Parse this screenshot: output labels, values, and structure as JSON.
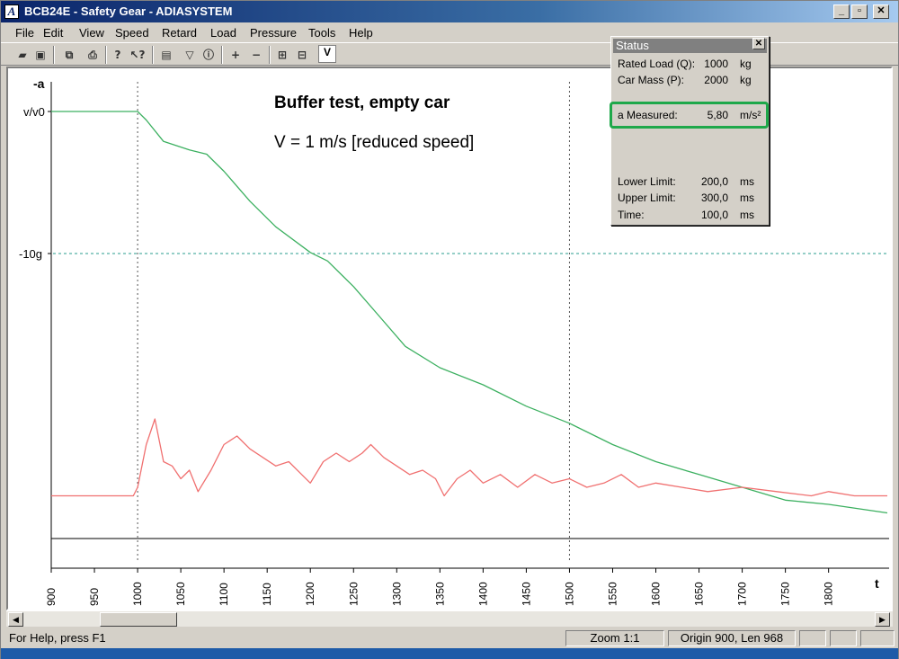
{
  "window": {
    "app_icon_letter": "A",
    "title": "BCB24E - Safety Gear - ADIASYSTEM"
  },
  "window_controls": {
    "minimize": "_",
    "restore": "▫",
    "close": "✕"
  },
  "menu": [
    "File",
    "Edit",
    "View",
    "Speed",
    "Retard",
    "Load",
    "Pressure",
    "Tools",
    "Help"
  ],
  "toolbar": {
    "v_button": "V"
  },
  "plot": {
    "title": "Buffer test, empty car",
    "subtitle": "V = 1 m/s [reduced speed]",
    "y_axis_label": "-a",
    "y_top_label": "v/v0",
    "y_ref_label": "-10g",
    "x_axis_label": "t",
    "x_ticks": [
      "900",
      "950",
      "1000",
      "1050",
      "1100",
      "1150",
      "1200",
      "1250",
      "1300",
      "1350",
      "1400",
      "1450",
      "1500",
      "1550",
      "1600",
      "1650",
      "1700",
      "1750",
      "1800"
    ]
  },
  "chart_data": {
    "type": "line",
    "xlim": [
      900,
      1868
    ],
    "grid": "vertical dotted markers at 1000 and 1500; horizontal dotted reference at -10g",
    "series": [
      {
        "color": "#3cb060",
        "x": [
          900,
          1000,
          1010,
          1030,
          1060,
          1080,
          1100,
          1130,
          1160,
          1200,
          1220,
          1250,
          1280,
          1310,
          1350,
          1400,
          1450,
          1500,
          1550,
          1600,
          1650,
          1700,
          1750,
          1800,
          1868
        ],
        "y": [
          1.0,
          1.0,
          0.98,
          0.93,
          0.91,
          0.9,
          0.86,
          0.79,
          0.73,
          0.67,
          0.65,
          0.59,
          0.52,
          0.45,
          0.4,
          0.36,
          0.31,
          0.27,
          0.22,
          0.18,
          0.15,
          0.12,
          0.09,
          0.08,
          0.06
        ]
      },
      {
        "color": "#f07070",
        "x": [
          900,
          995,
          1000,
          1010,
          1020,
          1030,
          1040,
          1050,
          1060,
          1070,
          1085,
          1100,
          1115,
          1130,
          1145,
          1160,
          1175,
          1190,
          1200,
          1215,
          1230,
          1245,
          1260,
          1270,
          1285,
          1300,
          1315,
          1330,
          1345,
          1355,
          1370,
          1385,
          1400,
          1420,
          1440,
          1460,
          1480,
          1500,
          1520,
          1540,
          1560,
          1580,
          1600,
          1630,
          1660,
          1700,
          1740,
          1780,
          1800,
          1830,
          1868
        ],
        "y": [
          0.1,
          0.1,
          0.12,
          0.22,
          0.28,
          0.18,
          0.17,
          0.14,
          0.16,
          0.11,
          0.16,
          0.22,
          0.24,
          0.21,
          0.19,
          0.17,
          0.18,
          0.15,
          0.13,
          0.18,
          0.2,
          0.18,
          0.2,
          0.22,
          0.19,
          0.17,
          0.15,
          0.16,
          0.14,
          0.1,
          0.14,
          0.16,
          0.13,
          0.15,
          0.12,
          0.15,
          0.13,
          0.14,
          0.12,
          0.13,
          0.15,
          0.12,
          0.13,
          0.12,
          0.11,
          0.12,
          0.11,
          0.1,
          0.11,
          0.1,
          0.1
        ]
      }
    ]
  },
  "status_window": {
    "title": "Status",
    "close": "✕",
    "rows": [
      {
        "label": "Rated Load (Q):",
        "value": "1000",
        "unit": "kg"
      },
      {
        "label": "Car Mass (P):",
        "value": "2000",
        "unit": "kg"
      },
      {
        "label": "a Measured:",
        "value": "5,80",
        "unit": "m/s²"
      },
      {
        "label": "Lower Limit:",
        "value": "200,0",
        "unit": "ms"
      },
      {
        "label": "Upper Limit:",
        "value": "300,0",
        "unit": "ms"
      },
      {
        "label": "Time:",
        "value": "100,0",
        "unit": "ms"
      }
    ]
  },
  "scrollbar": {
    "left_arrow": "◀",
    "right_arrow": "▶"
  },
  "statusbar": {
    "help": "For Help, press F1",
    "zoom": "Zoom 1:1",
    "origin": "Origin 900, Len 968"
  }
}
